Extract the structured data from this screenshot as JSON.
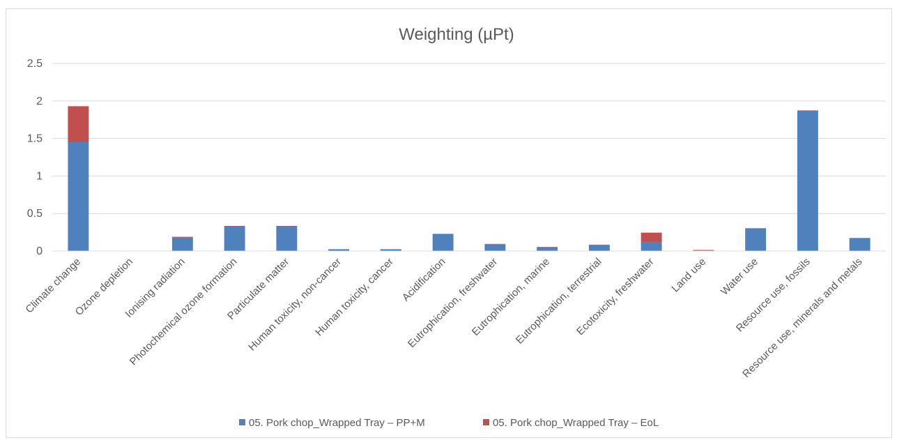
{
  "chart_data": {
    "type": "bar",
    "stacked": true,
    "title": "Weighting (µPt)",
    "xlabel": "",
    "ylabel": "",
    "ylim": [
      0,
      2.5
    ],
    "yticks": [
      "0",
      "0.5",
      "1",
      "1.5",
      "2",
      "2.5"
    ],
    "grid": true,
    "legend_position": "bottom",
    "categories": [
      "Climate change",
      "Ozone depletion",
      "Ionising radiation",
      "Photochemical ozone formation",
      "Particulate matter",
      "Human toxicity, non-cancer",
      "Human toxicity, cancer",
      "Acidification",
      "Eutrophication, freshwater",
      "Eutrophication, marine",
      "Eutrophication, terrestrial",
      "Ecotoxicity, freshwater",
      "Land use",
      "Water use",
      "Resource use, fossils",
      "Resource use, minerals and metals"
    ],
    "series": [
      {
        "name": "05. Pork chop_Wrapped Tray –  PP+M",
        "color": "#4f81bd",
        "values": [
          1.45,
          0.0,
          0.18,
          0.33,
          0.33,
          0.02,
          0.02,
          0.225,
          0.09,
          0.05,
          0.08,
          0.12,
          0.01,
          0.3,
          1.87,
          0.17
        ]
      },
      {
        "name": "05. Pork chop_Wrapped Tray – EoL",
        "color": "#c0504d",
        "values": [
          0.48,
          0.0,
          0.01,
          0.005,
          0.005,
          0.005,
          0.005,
          0.005,
          0.005,
          0.005,
          0.005,
          0.125,
          0.005,
          0.005,
          0.005,
          0.005
        ]
      }
    ]
  }
}
